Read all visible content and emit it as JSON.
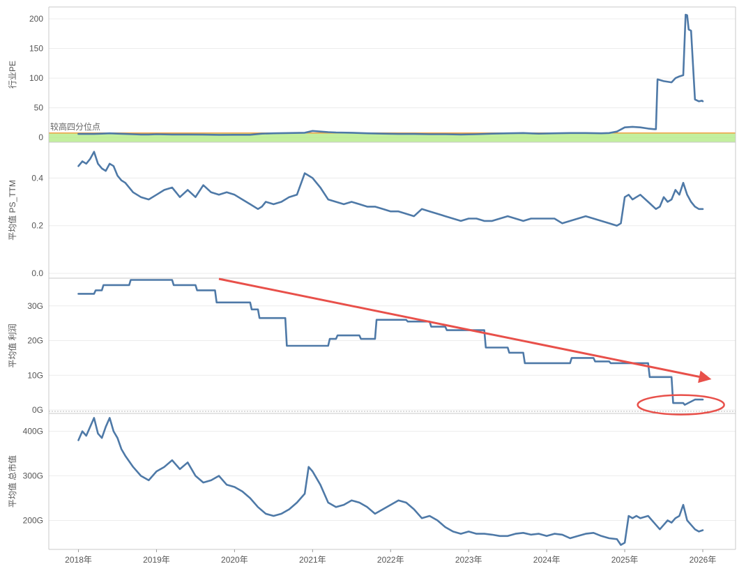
{
  "chart_data": {
    "type": "line",
    "x_axis": {
      "tick_labels": [
        "2018年",
        "2019年",
        "2020年",
        "2021年",
        "2022年",
        "2023年",
        "2024年",
        "2025年",
        "2026年"
      ],
      "range": [
        2017.62,
        2026.42
      ]
    },
    "color": "#4e79a7",
    "panels": [
      {
        "id": "pe",
        "ylabel": "行业PE",
        "ylim": [
          -8,
          220
        ],
        "yticks": [
          0,
          50,
          100,
          150,
          200
        ],
        "ytick_labels": [
          "0",
          "50",
          "100",
          "150",
          "200"
        ],
        "reference_band": {
          "label": "较高四分位点",
          "from": -8,
          "to": 7.5,
          "fill": "#b8ec8e",
          "line_color": "#f0a042"
        },
        "series": [
          {
            "x": [
              2018.0,
              2018.2,
              2018.3,
              2018.4,
              2018.5,
              2018.6,
              2018.7,
              2018.8,
              2018.9,
              2019.0,
              2019.2,
              2019.4,
              2019.6,
              2019.8,
              2020.0,
              2020.2,
              2020.35,
              2020.5,
              2020.7,
              2020.9,
              2021.0,
              2021.1,
              2021.2,
              2021.3,
              2021.5,
              2021.7,
              2021.9,
              2022.1,
              2022.3,
              2022.5,
              2022.7,
              2022.9,
              2023.1,
              2023.3,
              2023.5,
              2023.7,
              2023.9,
              2024.1,
              2024.3,
              2024.5,
              2024.7,
              2024.8,
              2024.9,
              2025.0,
              2025.1,
              2025.2,
              2025.3,
              2025.38,
              2025.4,
              2025.42,
              2025.5,
              2025.6,
              2025.65,
              2025.7,
              2025.75,
              2025.78,
              2025.8,
              2025.82,
              2025.85,
              2025.9,
              2025.95,
              2025.99,
              2026.0
            ],
            "y": [
              6,
              6,
              6.5,
              7,
              6.5,
              6,
              5.5,
              5,
              5,
              5.5,
              5,
              5,
              4.8,
              4.5,
              4.6,
              4.6,
              6.5,
              7,
              7.5,
              8,
              11,
              10,
              9,
              8.5,
              8,
              7,
              6.5,
              6,
              6,
              5.5,
              5.5,
              5,
              5.5,
              6.5,
              7,
              7.5,
              6.5,
              7,
              7.5,
              7.5,
              7,
              7.5,
              10,
              17,
              18,
              17,
              15,
              14,
              14,
              98,
              95,
              93,
              100,
              103,
              105,
              207,
              206,
              182,
              180,
              64,
              61,
              62,
              61
            ]
          }
        ]
      },
      {
        "id": "ps",
        "ylabel": "平均值 PS_TTM",
        "ylim": [
          -0.02,
          0.55
        ],
        "yticks": [
          0.0,
          0.2,
          0.4
        ],
        "ytick_labels": [
          "0.0",
          "0.2",
          "0.4"
        ],
        "series": [
          {
            "x": [
              2018.0,
              2018.05,
              2018.1,
              2018.15,
              2018.2,
              2018.25,
              2018.3,
              2018.35,
              2018.4,
              2018.45,
              2018.5,
              2018.55,
              2018.6,
              2018.7,
              2018.8,
              2018.9,
              2019.0,
              2019.1,
              2019.2,
              2019.3,
              2019.4,
              2019.5,
              2019.6,
              2019.7,
              2019.8,
              2019.9,
              2020.0,
              2020.1,
              2020.2,
              2020.3,
              2020.35,
              2020.4,
              2020.5,
              2020.6,
              2020.7,
              2020.8,
              2020.9,
              2020.95,
              2021.0,
              2021.05,
              2021.1,
              2021.2,
              2021.3,
              2021.4,
              2021.5,
              2021.6,
              2021.7,
              2021.8,
              2021.9,
              2022.0,
              2022.1,
              2022.2,
              2022.3,
              2022.4,
              2022.5,
              2022.6,
              2022.7,
              2022.8,
              2022.9,
              2023.0,
              2023.1,
              2023.2,
              2023.3,
              2023.4,
              2023.5,
              2023.6,
              2023.7,
              2023.8,
              2023.9,
              2024.0,
              2024.1,
              2024.2,
              2024.3,
              2024.4,
              2024.5,
              2024.6,
              2024.7,
              2024.8,
              2024.9,
              2024.95,
              2025.0,
              2025.05,
              2025.1,
              2025.15,
              2025.2,
              2025.3,
              2025.4,
              2025.45,
              2025.5,
              2025.55,
              2025.6,
              2025.65,
              2025.7,
              2025.75,
              2025.8,
              2025.85,
              2025.9,
              2025.95,
              2026.0
            ],
            "y": [
              0.45,
              0.47,
              0.46,
              0.48,
              0.51,
              0.46,
              0.44,
              0.43,
              0.46,
              0.45,
              0.41,
              0.39,
              0.38,
              0.34,
              0.32,
              0.31,
              0.33,
              0.35,
              0.36,
              0.32,
              0.35,
              0.32,
              0.37,
              0.34,
              0.33,
              0.34,
              0.33,
              0.31,
              0.29,
              0.27,
              0.28,
              0.3,
              0.29,
              0.3,
              0.32,
              0.33,
              0.42,
              0.41,
              0.4,
              0.38,
              0.36,
              0.31,
              0.3,
              0.29,
              0.3,
              0.29,
              0.28,
              0.28,
              0.27,
              0.26,
              0.26,
              0.25,
              0.24,
              0.27,
              0.26,
              0.25,
              0.24,
              0.23,
              0.22,
              0.23,
              0.23,
              0.22,
              0.22,
              0.23,
              0.24,
              0.23,
              0.22,
              0.23,
              0.23,
              0.23,
              0.23,
              0.21,
              0.22,
              0.23,
              0.24,
              0.23,
              0.22,
              0.21,
              0.2,
              0.21,
              0.32,
              0.33,
              0.31,
              0.32,
              0.33,
              0.3,
              0.27,
              0.28,
              0.32,
              0.3,
              0.31,
              0.35,
              0.33,
              0.38,
              0.33,
              0.3,
              0.28,
              0.27,
              0.27
            ]
          }
        ]
      },
      {
        "id": "profit",
        "ylabel": "平均值 利润",
        "ylim": [
          -1,
          38
        ],
        "yticks": [
          0,
          10,
          20,
          30
        ],
        "ytick_labels": [
          "0G",
          "10G",
          "20G",
          "30G"
        ],
        "series": [
          {
            "x": [
              2018.0,
              2018.2,
              2018.22,
              2018.3,
              2018.32,
              2018.65,
              2018.67,
              2019.0,
              2019.2,
              2019.22,
              2019.5,
              2019.52,
              2019.75,
              2019.77,
              2020.2,
              2020.22,
              2020.3,
              2020.32,
              2020.65,
              2020.67,
              2021.0,
              2021.2,
              2021.22,
              2021.3,
              2021.32,
              2021.6,
              2021.62,
              2021.8,
              2021.82,
              2022.2,
              2022.22,
              2022.5,
              2022.52,
              2022.7,
              2022.72,
              2023.0,
              2023.2,
              2023.22,
              2023.5,
              2023.52,
              2023.7,
              2023.72,
              2024.0,
              2024.3,
              2024.32,
              2024.6,
              2024.62,
              2024.8,
              2024.82,
              2025.0,
              2025.3,
              2025.32,
              2025.6,
              2025.62,
              2025.75,
              2025.77,
              2025.9,
              2026.0
            ],
            "y": [
              33.5,
              33.5,
              34.5,
              34.5,
              36,
              36,
              37.5,
              37.5,
              37.5,
              36,
              36,
              34.5,
              34.5,
              31,
              31,
              29,
              29,
              26.5,
              26.5,
              18.5,
              18.5,
              18.5,
              20.5,
              20.5,
              21.5,
              21.5,
              20.5,
              20.5,
              26,
              26,
              25.5,
              25.5,
              24,
              24,
              23,
              23,
              23,
              18,
              18,
              16.5,
              16.5,
              13.5,
              13.5,
              13.5,
              15,
              15,
              14,
              14,
              13.5,
              13.5,
              13.5,
              9.5,
              9.5,
              2,
              2,
              1.5,
              3,
              3
            ]
          }
        ],
        "annotations": [
          "red trend arrow",
          "red ellipse"
        ]
      },
      {
        "id": "mcap",
        "ylabel": "平均值 总市值",
        "ylim": [
          135,
          440
        ],
        "yticks": [
          200,
          300,
          400
        ],
        "ytick_labels": [
          "200G",
          "300G",
          "400G"
        ],
        "series": [
          {
            "x": [
              2018.0,
              2018.05,
              2018.1,
              2018.15,
              2018.2,
              2018.25,
              2018.3,
              2018.35,
              2018.4,
              2018.45,
              2018.5,
              2018.55,
              2018.6,
              2018.7,
              2018.8,
              2018.9,
              2019.0,
              2019.1,
              2019.2,
              2019.3,
              2019.4,
              2019.5,
              2019.6,
              2019.7,
              2019.8,
              2019.9,
              2020.0,
              2020.1,
              2020.2,
              2020.3,
              2020.4,
              2020.5,
              2020.6,
              2020.7,
              2020.8,
              2020.9,
              2020.95,
              2021.0,
              2021.05,
              2021.1,
              2021.2,
              2021.3,
              2021.4,
              2021.5,
              2021.6,
              2021.7,
              2021.8,
              2021.9,
              2022.0,
              2022.1,
              2022.2,
              2022.3,
              2022.4,
              2022.5,
              2022.6,
              2022.7,
              2022.8,
              2022.9,
              2023.0,
              2023.1,
              2023.2,
              2023.3,
              2023.4,
              2023.5,
              2023.6,
              2023.7,
              2023.8,
              2023.9,
              2024.0,
              2024.1,
              2024.2,
              2024.3,
              2024.4,
              2024.5,
              2024.6,
              2024.7,
              2024.8,
              2024.9,
              2024.95,
              2025.0,
              2025.05,
              2025.1,
              2025.15,
              2025.2,
              2025.3,
              2025.4,
              2025.45,
              2025.5,
              2025.55,
              2025.6,
              2025.65,
              2025.7,
              2025.75,
              2025.8,
              2025.85,
              2025.9,
              2025.95,
              2026.0
            ],
            "y": [
              380,
              400,
              390,
              410,
              430,
              395,
              385,
              410,
              430,
              400,
              385,
              360,
              345,
              320,
              300,
              290,
              310,
              320,
              335,
              315,
              330,
              300,
              285,
              290,
              300,
              280,
              275,
              265,
              250,
              230,
              215,
              210,
              215,
              225,
              240,
              260,
              320,
              310,
              295,
              280,
              240,
              230,
              235,
              245,
              240,
              230,
              215,
              225,
              235,
              245,
              240,
              225,
              205,
              210,
              200,
              185,
              175,
              170,
              175,
              170,
              170,
              168,
              165,
              165,
              170,
              172,
              168,
              170,
              165,
              170,
              168,
              160,
              165,
              170,
              172,
              165,
              160,
              158,
              145,
              150,
              210,
              205,
              210,
              205,
              210,
              190,
              180,
              190,
              200,
              195,
              205,
              210,
              235,
              200,
              190,
              180,
              175,
              178
            ]
          }
        ]
      }
    ]
  }
}
